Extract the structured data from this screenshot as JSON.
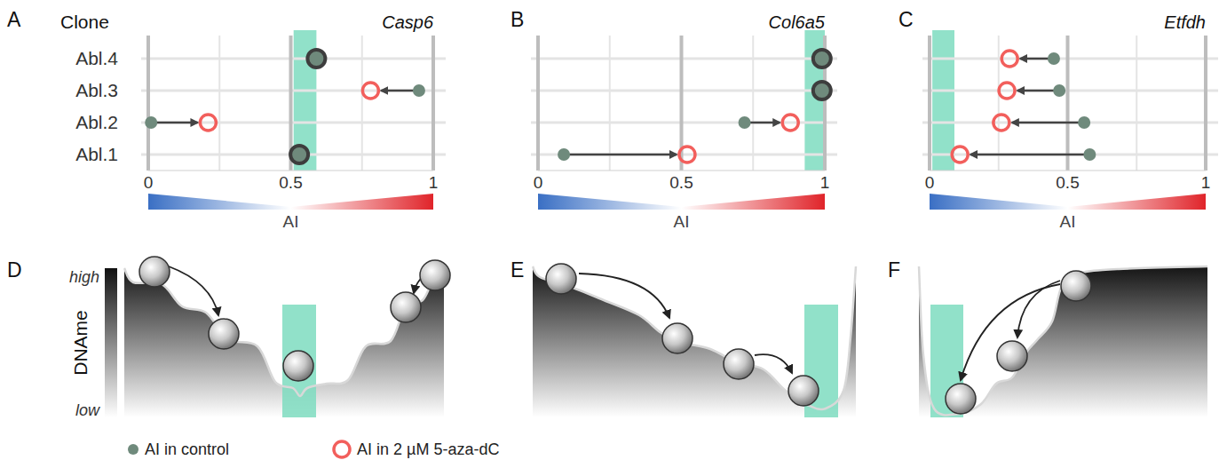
{
  "chart_data": [
    {
      "type": "dumbbell",
      "panel": "A",
      "title": "Casp6",
      "y_label": "Clone",
      "x_label": "AI",
      "categories": [
        "Abl.1",
        "Abl.2",
        "Abl.3",
        "Abl.4"
      ],
      "series": [
        {
          "name": "AI in control",
          "color": "#6f8a7c",
          "marker": "dot",
          "values": [
            0.53,
            0.01,
            0.95,
            0.59
          ]
        },
        {
          "name": "AI in 2 µM 5-aza-dC",
          "color": "#f25f5c",
          "marker": "ring",
          "values": [
            0.53,
            0.21,
            0.78,
            0.59
          ]
        }
      ],
      "highlight_range": [
        0.51,
        0.59
      ],
      "xlim": [
        0,
        1
      ],
      "xticks": [
        0,
        0.5,
        1
      ],
      "grid": true,
      "legend": "bottom"
    },
    {
      "type": "dumbbell",
      "panel": "B",
      "title": "Col6a5",
      "x_label": "AI",
      "categories": [
        "Abl.1",
        "Abl.2",
        "Abl.3",
        "Abl.4"
      ],
      "series": [
        {
          "color": "#6f8a7c",
          "marker": "dot",
          "values": [
            0.09,
            0.72,
            0.99,
            0.99
          ]
        },
        {
          "color": "#f25f5c",
          "marker": "ring",
          "values": [
            0.52,
            0.88,
            0.99,
            0.99
          ]
        }
      ],
      "highlight_range": [
        0.93,
        1
      ],
      "xlim": [
        0,
        1
      ],
      "xticks": [
        0,
        0.5,
        1
      ],
      "grid": true,
      "tick_labels": "x"
    },
    {
      "type": "dumbbell",
      "panel": "C",
      "title": "Etfdh",
      "x_label": "AI",
      "categories": [
        "Abl.1",
        "Abl.2",
        "Abl.3",
        "Abl.4"
      ],
      "series": [
        {
          "color": "#6f8a7c",
          "marker": "dot",
          "values": [
            0.58,
            0.56,
            0.47,
            0.45
          ]
        },
        {
          "color": "#f25f5c",
          "marker": "ring",
          "values": [
            0.11,
            0.26,
            0.28,
            0.29
          ]
        }
      ],
      "highlight_range": [
        0.01,
        0.09
      ],
      "xlim": [
        0,
        1
      ],
      "xticks": [
        0,
        0.5,
        1
      ],
      "grid": true,
      "tick_labels": "x"
    }
  ],
  "diagram": {
    "axis_label": "DNAme",
    "high": "high",
    "low": "low",
    "panels": [
      "D",
      "E",
      "F"
    ]
  }
}
